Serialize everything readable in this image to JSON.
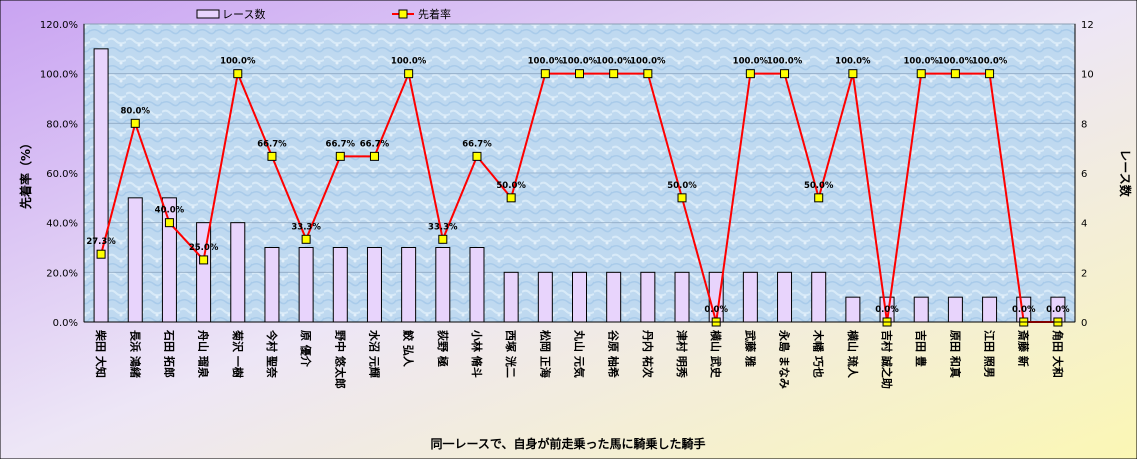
{
  "chart_data": {
    "type": "bar+line",
    "title": "",
    "xlabel": "同一レースで、自身が前走乗った馬に騎乗した騎手",
    "ylabel_left": "先着率（%）",
    "ylabel_right": "レース数",
    "ylim_left": [
      0,
      120
    ],
    "ylim_right": [
      0,
      12
    ],
    "left_ticks": [
      "0.0%",
      "20.0%",
      "40.0%",
      "60.0%",
      "80.0%",
      "100.0%",
      "120.0%"
    ],
    "right_ticks": [
      "0",
      "2",
      "4",
      "6",
      "8",
      "10",
      "12"
    ],
    "legend_position": "top",
    "grid": true,
    "categories": [
      "柴田 大知",
      "長浜 鴻緒",
      "石田 拓郎",
      "舟山 瑠泉",
      "菊沢 一樹",
      "今村 聖奈",
      "原 優介",
      "野中 悠太郎",
      "水沼 元輝",
      "鮫 弘人",
      "荻野 極",
      "小林 脩斗",
      "西塚 洸二",
      "松岡 正海",
      "丸山 元気",
      "谷原 柚希",
      "丹内 祐次",
      "津村 明秀",
      "横山 武史",
      "武藤 雅",
      "永島 まなみ",
      "木幡 巧也",
      "横山 琉人",
      "吉村 誠之助",
      "吉田 豊",
      "原田 和真",
      "江田 照男",
      "斎藤 新",
      "角田 大和"
    ],
    "series": [
      {
        "name": "レース数",
        "kind": "bar",
        "axis": "right",
        "color": "#E8D4FC",
        "stroke": "#000000",
        "values": [
          11,
          5,
          5,
          4,
          4,
          3,
          3,
          3,
          3,
          3,
          3,
          3,
          2,
          2,
          2,
          2,
          2,
          2,
          2,
          2,
          2,
          2,
          1,
          1,
          1,
          1,
          1,
          1,
          1
        ]
      },
      {
        "name": "先着率",
        "kind": "line",
        "axis": "left",
        "color": "#FF0000",
        "marker": "#FFFF00",
        "values": [
          27.3,
          80.0,
          40.0,
          25.0,
          100.0,
          66.7,
          33.3,
          66.7,
          66.7,
          100.0,
          33.3,
          66.7,
          50.0,
          100.0,
          100.0,
          100.0,
          100.0,
          50.0,
          0.0,
          100.0,
          100.0,
          50.0,
          100.0,
          0.0,
          100.0,
          100.0,
          100.0,
          0.0,
          0.0
        ],
        "labels": [
          "27.3%",
          "80.0%",
          "40.0%",
          "25.0%",
          "100.0%",
          "66.7%",
          "33.3%",
          "66.7%",
          "66.7%",
          "100.0%",
          "33.3%",
          "66.7%",
          "50.0%",
          "100.0%",
          "100.0%",
          "100.0%",
          "100.0%",
          "50.0%",
          "0.0%",
          "100.0%",
          "100.0%",
          "50.0%",
          "100.0%",
          "0.0%",
          "100.0%",
          "100.0%",
          "100.0%",
          "0.0%",
          "0.0%"
        ]
      }
    ]
  }
}
